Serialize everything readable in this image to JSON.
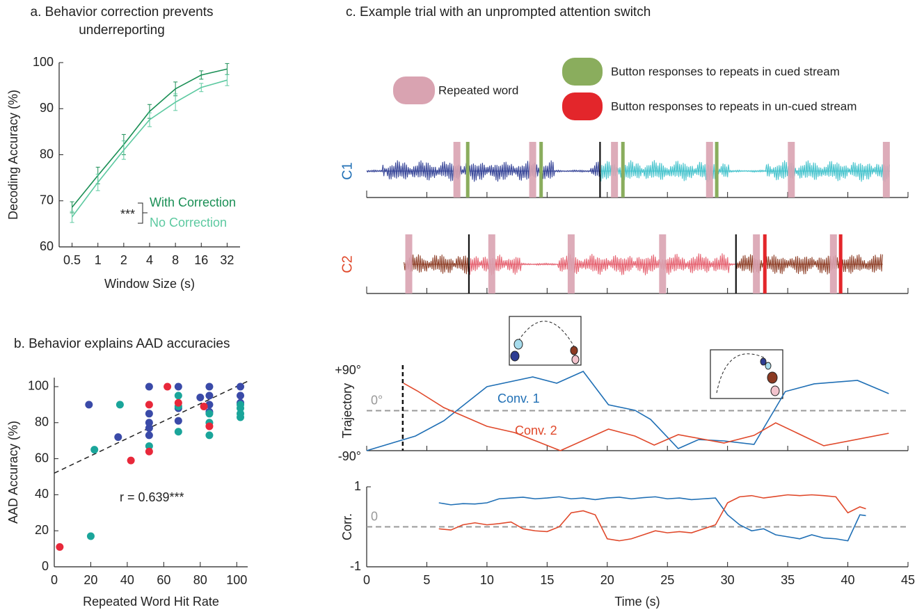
{
  "chart_data": [
    {
      "type": "line",
      "title": [
        "a. Behavior correction prevents",
        "underreporting"
      ],
      "xlabel": "Window Size (s)",
      "ylabel": "Decoding Accuracy (%)",
      "categories": [
        "0.5",
        "1",
        "2",
        "4",
        "8",
        "16",
        "32"
      ],
      "ylim": [
        60,
        100
      ],
      "yticks": [
        60,
        70,
        80,
        90,
        100
      ],
      "annotation": "***",
      "series": [
        {
          "name": "With Correction",
          "color": "#1a8f55",
          "values": [
            68.6,
            75.5,
            82.2,
            89.4,
            94.3,
            97.3,
            98.6
          ],
          "errors": [
            1.2,
            1.8,
            2.2,
            1.5,
            1.5,
            0.9,
            1.2
          ]
        },
        {
          "name": "No Correction",
          "color": "#5cc9a0",
          "values": [
            66.5,
            74,
            81,
            87.6,
            91.4,
            94.6,
            96.2
          ],
          "errors": [
            1.2,
            1.8,
            2.0,
            1.5,
            1.8,
            0.9,
            1.2
          ]
        }
      ]
    },
    {
      "type": "scatter",
      "title": "b. Behavior explains AAD accuracies",
      "xlabel": "Repeated Word Hit Rate",
      "ylabel": "AAD Accuracy (%)",
      "xlim": [
        0,
        106
      ],
      "xticks": [
        0,
        20,
        40,
        60,
        80,
        100
      ],
      "ylim": [
        0,
        105
      ],
      "yticks": [
        0,
        20,
        40,
        60,
        80,
        100
      ],
      "annotation": "r = 0.639***",
      "trend_line": {
        "x": [
          0,
          106
        ],
        "y": [
          52,
          103
        ]
      },
      "series": [
        {
          "color": "#3a4aa8",
          "x": [
            19,
            35,
            52,
            52,
            52,
            52,
            52,
            68,
            68,
            68,
            80,
            85,
            85,
            85,
            85,
            102,
            102,
            102
          ],
          "y": [
            90,
            72,
            100,
            85,
            80,
            77,
            73,
            100,
            88,
            81,
            94,
            100,
            95,
            90,
            86,
            100,
            95,
            91
          ]
        },
        {
          "color": "#1aa59a",
          "x": [
            20,
            22,
            36,
            52,
            68,
            68,
            68,
            85,
            85,
            85,
            102,
            102,
            102,
            102
          ],
          "y": [
            17,
            65,
            90,
            67,
            95,
            89,
            75,
            85,
            80,
            73,
            90,
            88,
            85,
            83
          ]
        },
        {
          "color": "#e8283a",
          "x": [
            3,
            42,
            52,
            52,
            62,
            68,
            82,
            85
          ],
          "y": [
            11,
            59,
            90,
            64,
            100,
            91,
            89,
            78
          ]
        }
      ]
    },
    {
      "type": "waveform",
      "title": "c. Example trial with an unprompted attention switch",
      "xlim": [
        0,
        45
      ],
      "xticks": [
        0,
        5,
        10,
        15,
        20,
        25,
        30,
        35,
        40,
        45
      ],
      "legend": [
        {
          "label": "Repeated word",
          "color": "#d9a3b1"
        },
        {
          "label": "Button responses to repeats in cued stream",
          "color": "#8aad5d"
        },
        {
          "label": "Button responses to repeats in un-cued stream",
          "color": "#e3262b"
        }
      ],
      "rows": [
        {
          "label": "C1",
          "label_color": "#1f6fb5",
          "segments": [
            {
              "start": 0,
              "end": 19.4,
              "color": "#2e3d93"
            },
            {
              "start": 19.4,
              "end": 43.5,
              "color": "#3cc0ca"
            }
          ],
          "repeats": [
            7.5,
            13.8,
            20.6,
            28.5,
            35.3,
            43.2
          ],
          "responses": [
            8.4,
            14.5,
            21.3,
            29.1
          ],
          "response_color": "#8aad5d"
        },
        {
          "label": "C2",
          "label_color": "#e0482a",
          "segments": [
            {
              "start": 3.1,
              "end": 8.5,
              "color": "#8b3a22"
            },
            {
              "start": 8.5,
              "end": 30.7,
              "color": "#e45c6b"
            },
            {
              "start": 30.7,
              "end": 42.9,
              "color": "#8b3a22"
            }
          ],
          "repeats": [
            3.5,
            10.4,
            17.0,
            24.6,
            32.4,
            38.8
          ],
          "responses": [
            33.1,
            39.4
          ],
          "response_color": "#e3262b"
        }
      ]
    },
    {
      "type": "line",
      "ylabel": "Trajectory",
      "xlim": [
        0,
        45
      ],
      "xticks": [
        0,
        5,
        10,
        15,
        20,
        25,
        30,
        35,
        40,
        45
      ],
      "ylim": [
        -90,
        90
      ],
      "yticks": [
        {
          "value": 90,
          "label": "+90°"
        },
        {
          "value": -90,
          "label": "-90°"
        }
      ],
      "reference_line": {
        "value": 0,
        "label": "0°"
      },
      "event_x": 3,
      "series": [
        {
          "name": "Conv. 1",
          "color": "#1f6fb5",
          "x": [
            0,
            4.05,
            6.42,
            10.0,
            13.8,
            15.8,
            18.0,
            20.1,
            22.3,
            23.6,
            25.9,
            27.6,
            29.7,
            32.2,
            34.8,
            37.2,
            40.8,
            43.4
          ],
          "values": [
            -90,
            -57.1,
            -22.7,
            54,
            75.9,
            61.8,
            88.4,
            13.3,
            0.8,
            -19.6,
            -85.3,
            -65,
            -68.1,
            -75.9,
            43,
            60.3,
            68.1,
            38.4
          ]
        },
        {
          "name": "Conv. 2",
          "color": "#e0482a",
          "x": [
            3.07,
            4.2,
            6.4,
            10.0,
            12.3,
            16.1,
            20.1,
            22.3,
            23.9,
            25.9,
            29.7,
            32.2,
            34.0,
            38.0,
            43.4
          ],
          "values": [
            61.8,
            44.6,
            7,
            -35.2,
            -49.3,
            -90,
            -41.5,
            -57.1,
            -77.5,
            -54,
            -72.8,
            -55.6,
            -27.4,
            -79,
            -50.9
          ]
        }
      ]
    },
    {
      "type": "line",
      "xlabel": "Time (s)",
      "ylabel": "Corr.",
      "xlim": [
        0,
        45
      ],
      "xticks": [
        0,
        5,
        10,
        15,
        20,
        25,
        30,
        35,
        40,
        45
      ],
      "ylim": [
        -1,
        1
      ],
      "yticks": [
        1,
        -1
      ],
      "reference_line": {
        "value": 0,
        "label": "0"
      },
      "series": [
        {
          "color": "#1f6fb5",
          "x": [
            6,
            7,
            8,
            9,
            10,
            11,
            12,
            13,
            14,
            15,
            16,
            17,
            18,
            19,
            20,
            21,
            22,
            23,
            24,
            25,
            26,
            27,
            28,
            29,
            30,
            31,
            32,
            33,
            34,
            35,
            36,
            37,
            38,
            39,
            40,
            41,
            41.5
          ],
          "values": [
            0.6,
            0.55,
            0.58,
            0.57,
            0.6,
            0.7,
            0.72,
            0.74,
            0.7,
            0.72,
            0.75,
            0.7,
            0.72,
            0.68,
            0.72,
            0.74,
            0.7,
            0.73,
            0.75,
            0.7,
            0.72,
            0.68,
            0.7,
            0.72,
            0.3,
            0.05,
            -0.1,
            -0.05,
            -0.2,
            -0.25,
            -0.3,
            -0.2,
            -0.28,
            -0.3,
            -0.35,
            0.3,
            0.28
          ]
        },
        {
          "color": "#e0482a",
          "x": [
            6,
            7,
            8,
            9,
            10,
            11,
            12,
            13,
            14,
            15,
            16,
            17,
            18,
            19,
            20,
            21,
            22,
            23,
            24,
            25,
            26,
            27,
            28,
            29,
            30,
            31,
            32,
            33,
            34,
            35,
            36,
            37,
            38,
            39,
            40,
            41,
            41.5
          ],
          "values": [
            -0.05,
            -0.08,
            0.05,
            0.1,
            0.05,
            0.08,
            0.12,
            -0.05,
            -0.1,
            -0.12,
            0.0,
            0.35,
            0.4,
            0.3,
            -0.3,
            -0.35,
            -0.3,
            -0.2,
            -0.1,
            -0.15,
            -0.12,
            -0.15,
            -0.05,
            0.05,
            0.6,
            0.75,
            0.78,
            0.72,
            0.76,
            0.8,
            0.78,
            0.8,
            0.78,
            0.75,
            0.35,
            0.5,
            0.45
          ]
        }
      ]
    }
  ]
}
